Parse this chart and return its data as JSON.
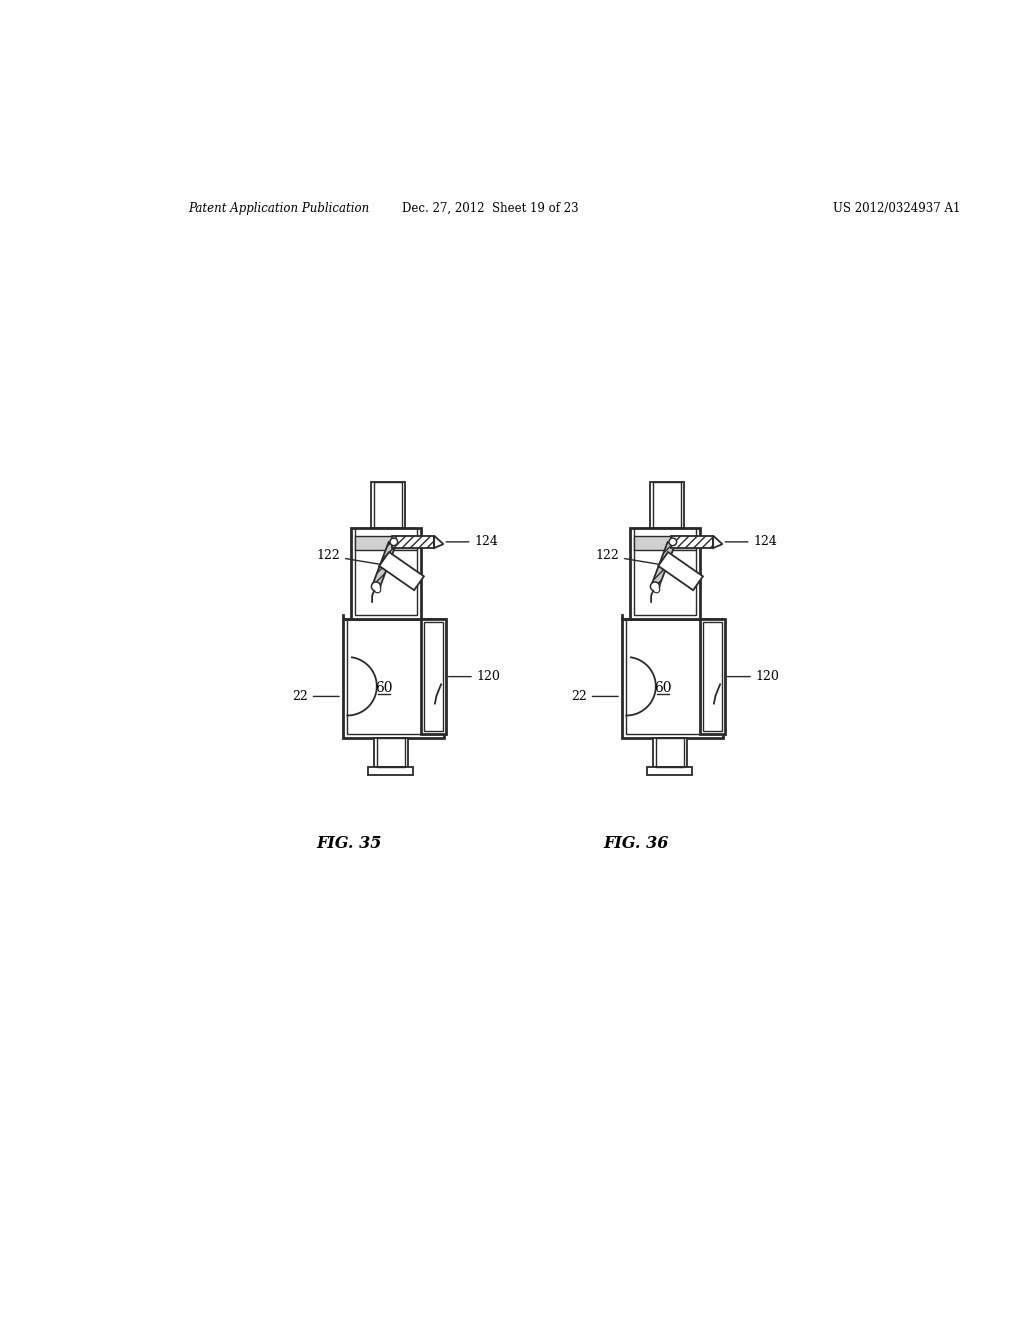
{
  "background_color": "#ffffff",
  "header_left": "Patent Application Publication",
  "header_center": "Dec. 27, 2012  Sheet 19 of 23",
  "header_right": "US 2012/0324937 A1",
  "fig35_label": "FIG. 35",
  "fig36_label": "FIG. 36",
  "line_color": "#2a2a2a",
  "label_color": "#000000",
  "lw": 1.3,
  "lw2": 2.0
}
